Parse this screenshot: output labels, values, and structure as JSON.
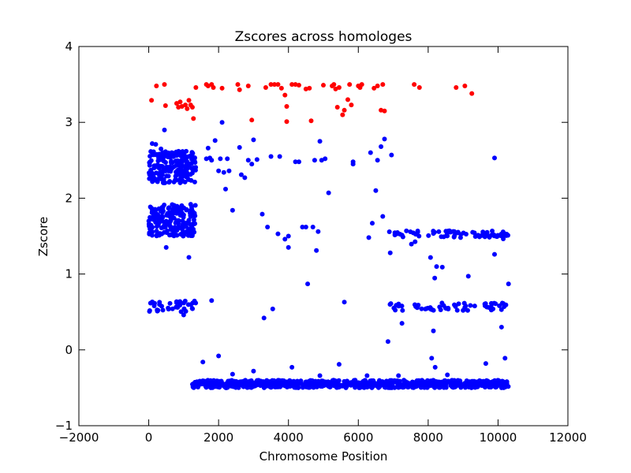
{
  "chart_data": {
    "type": "scatter",
    "title": "Zscores across homologes",
    "xlabel": "Chromosome Position",
    "ylabel": "Zscore",
    "xlim": [
      -2000,
      12000
    ],
    "ylim": [
      -1,
      4
    ],
    "xticks": [
      -2000,
      0,
      2000,
      4000,
      6000,
      8000,
      10000,
      12000
    ],
    "xtick_labels": [
      "−2000",
      "0",
      "2000",
      "4000",
      "6000",
      "8000",
      "10000",
      "12000"
    ],
    "yticks": [
      -1,
      0,
      1,
      2,
      3,
      4
    ],
    "ytick_labels": [
      "−1",
      "0",
      "1",
      "2",
      "3",
      "4"
    ],
    "grid": false,
    "colors": {
      "high": "#ff0000",
      "normal": "#0000ff"
    },
    "series": [
      {
        "color": "#ff0000",
        "points": [
          [
            80,
            3.29
          ],
          [
            220,
            3.48
          ],
          [
            450,
            3.5
          ],
          [
            480,
            3.22
          ],
          [
            800,
            3.25
          ],
          [
            850,
            3.2
          ],
          [
            900,
            3.27
          ],
          [
            950,
            3.21
          ],
          [
            1050,
            3.23
          ],
          [
            1100,
            3.18
          ],
          [
            1150,
            3.29
          ],
          [
            1200,
            3.23
          ],
          [
            1250,
            3.2
          ],
          [
            1280,
            3.05
          ],
          [
            1350,
            3.46
          ],
          [
            1650,
            3.5
          ],
          [
            1700,
            3.48
          ],
          [
            1800,
            3.5
          ],
          [
            1850,
            3.46
          ],
          [
            2100,
            3.45
          ],
          [
            2550,
            3.5
          ],
          [
            2600,
            3.43
          ],
          [
            2850,
            3.48
          ],
          [
            2950,
            3.03
          ],
          [
            3350,
            3.46
          ],
          [
            3500,
            3.5
          ],
          [
            3600,
            3.5
          ],
          [
            3700,
            3.5
          ],
          [
            3800,
            3.45
          ],
          [
            3900,
            3.36
          ],
          [
            3950,
            3.21
          ],
          [
            3950,
            3.01
          ],
          [
            4100,
            3.5
          ],
          [
            4200,
            3.5
          ],
          [
            4300,
            3.49
          ],
          [
            4500,
            3.44
          ],
          [
            4600,
            3.45
          ],
          [
            4650,
            3.02
          ],
          [
            5000,
            3.49
          ],
          [
            5250,
            3.48
          ],
          [
            5300,
            3.5
          ],
          [
            5350,
            3.44
          ],
          [
            5400,
            3.2
          ],
          [
            5450,
            3.46
          ],
          [
            5550,
            3.1
          ],
          [
            5600,
            3.16
          ],
          [
            5700,
            3.3
          ],
          [
            5750,
            3.5
          ],
          [
            5800,
            3.23
          ],
          [
            6000,
            3.48
          ],
          [
            6050,
            3.46
          ],
          [
            6100,
            3.5
          ],
          [
            6450,
            3.45
          ],
          [
            6550,
            3.48
          ],
          [
            6650,
            3.16
          ],
          [
            6700,
            3.5
          ],
          [
            6750,
            3.15
          ],
          [
            7600,
            3.5
          ],
          [
            7750,
            3.46
          ],
          [
            8800,
            3.46
          ],
          [
            9050,
            3.48
          ],
          [
            9250,
            3.38
          ]
        ]
      },
      {
        "color": "#0000ff",
        "clusters": [
          {
            "x": [
              0,
              1350
            ],
            "y": [
              2.2,
              2.62
            ],
            "n": 220
          },
          {
            "x": [
              0,
              1350
            ],
            "y": [
              1.5,
              1.92
            ],
            "n": 200
          },
          {
            "x": [
              0,
              1350
            ],
            "y": [
              0.5,
              0.65
            ],
            "n": 35
          },
          {
            "x": [
              1250,
              10300
            ],
            "y": [
              -0.5,
              -0.4
            ],
            "n": 720
          },
          {
            "x": [
              6800,
              10300
            ],
            "y": [
              1.48,
              1.57
            ],
            "n": 70
          },
          {
            "x": [
              6800,
              10300
            ],
            "y": [
              0.51,
              0.62
            ],
            "n": 60
          },
          {
            "x": [
              6800,
              10300
            ],
            "y": [
              0.6,
              1.55
            ],
            "n": 10
          }
        ],
        "points": [
          [
            450,
            2.9
          ],
          [
            200,
            2.71
          ],
          [
            350,
            2.65
          ],
          [
            100,
            2.72
          ],
          [
            500,
            1.35
          ],
          [
            1150,
            1.22
          ],
          [
            1000,
            0.46
          ],
          [
            1800,
            2.5
          ],
          [
            1700,
            2.66
          ],
          [
            1900,
            2.76
          ],
          [
            1750,
            2.53
          ],
          [
            1650,
            2.52
          ],
          [
            2100,
            3.0
          ],
          [
            2050,
            2.52
          ],
          [
            2200,
            2.12
          ],
          [
            2250,
            2.52
          ],
          [
            2000,
            2.36
          ],
          [
            2300,
            2.36
          ],
          [
            2150,
            2.34
          ],
          [
            2400,
            1.84
          ],
          [
            2600,
            2.67
          ],
          [
            2650,
            2.31
          ],
          [
            2750,
            2.27
          ],
          [
            2850,
            2.5
          ],
          [
            2950,
            2.45
          ],
          [
            3000,
            2.77
          ],
          [
            3100,
            2.51
          ],
          [
            3250,
            1.79
          ],
          [
            3400,
            1.62
          ],
          [
            3500,
            2.55
          ],
          [
            3700,
            1.53
          ],
          [
            3750,
            2.55
          ],
          [
            3900,
            1.46
          ],
          [
            4000,
            1.5
          ],
          [
            4000,
            1.35
          ],
          [
            4200,
            2.48
          ],
          [
            4300,
            2.48
          ],
          [
            4400,
            1.62
          ],
          [
            4500,
            1.62
          ],
          [
            4700,
            1.62
          ],
          [
            4750,
            2.5
          ],
          [
            4800,
            1.31
          ],
          [
            4850,
            1.56
          ],
          [
            4900,
            2.75
          ],
          [
            4950,
            2.5
          ],
          [
            5050,
            2.52
          ],
          [
            5150,
            2.07
          ],
          [
            5850,
            2.48
          ],
          [
            5850,
            2.45
          ],
          [
            6300,
            1.48
          ],
          [
            6350,
            2.6
          ],
          [
            6400,
            1.67
          ],
          [
            6500,
            2.1
          ],
          [
            6550,
            2.5
          ],
          [
            6650,
            2.68
          ],
          [
            6700,
            1.76
          ],
          [
            6750,
            2.78
          ],
          [
            6950,
            2.57
          ],
          [
            1800,
            0.65
          ],
          [
            3300,
            0.42
          ],
          [
            3550,
            0.54
          ],
          [
            5600,
            0.63
          ],
          [
            4550,
            0.87
          ],
          [
            6850,
            0.11
          ],
          [
            7250,
            0.35
          ],
          [
            8150,
            0.25
          ],
          [
            10300,
            0.87
          ],
          [
            10100,
            0.3
          ],
          [
            9900,
            1.26
          ],
          [
            9900,
            2.53
          ],
          [
            2000,
            -0.08
          ],
          [
            1550,
            -0.16
          ],
          [
            2400,
            -0.32
          ],
          [
            3000,
            -0.28
          ],
          [
            4100,
            -0.23
          ],
          [
            5450,
            -0.19
          ],
          [
            6250,
            -0.34
          ],
          [
            7150,
            -0.34
          ],
          [
            8100,
            -0.11
          ],
          [
            8200,
            -0.23
          ],
          [
            9650,
            -0.18
          ],
          [
            10200,
            -0.11
          ],
          [
            8550,
            -0.33
          ],
          [
            4900,
            -0.34
          ]
        ]
      }
    ]
  }
}
